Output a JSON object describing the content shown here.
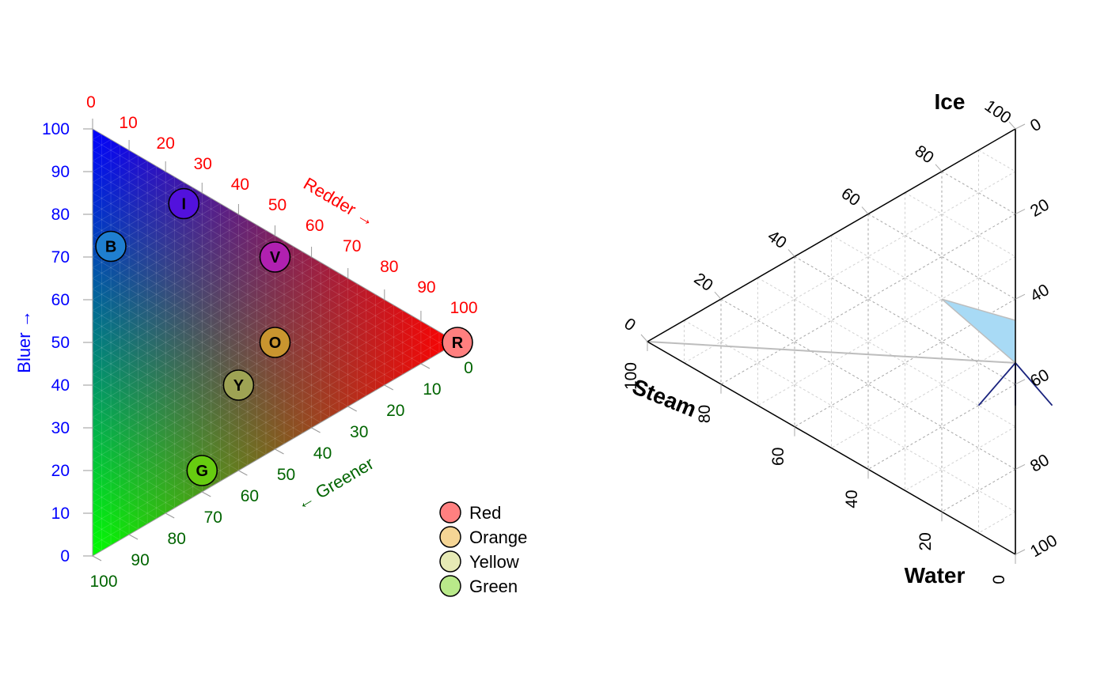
{
  "chart_data": [
    {
      "type": "ternary-scatter",
      "title": "",
      "axes": {
        "red": {
          "label": "Redder →",
          "ticks": [
            "0",
            "10",
            "20",
            "30",
            "40",
            "50",
            "60",
            "70",
            "80",
            "90",
            "100"
          ],
          "color": "#ff0000"
        },
        "green": {
          "label": "← Greener",
          "ticks": [
            "0",
            "10",
            "20",
            "30",
            "40",
            "50",
            "60",
            "70",
            "80",
            "90",
            "100"
          ],
          "color": "#006400"
        },
        "blue": {
          "label": "Bluer →",
          "ticks": [
            "0",
            "10",
            "20",
            "30",
            "40",
            "50",
            "60",
            "70",
            "80",
            "90",
            "100"
          ],
          "color": "#0000ff"
        }
      },
      "background": "rgb color gradient",
      "points": [
        {
          "label": "R",
          "red": 100,
          "green": 0,
          "blue": 0,
          "fill": "#ff7f7f"
        },
        {
          "label": "O",
          "red": 50,
          "green": 25,
          "blue": 25,
          "fill": "#c9952f"
        },
        {
          "label": "Y",
          "red": 40,
          "green": 40,
          "blue": 20,
          "fill": "#9ea354"
        },
        {
          "label": "G",
          "red": 30,
          "green": 65,
          "blue": 5,
          "fill": "#66cc10"
        },
        {
          "label": "B",
          "red": 5,
          "green": 25,
          "blue": 70,
          "fill": "#1f7fd0"
        },
        {
          "label": "I",
          "red": 25,
          "green": 5,
          "blue": 70,
          "fill": "#5211dd"
        },
        {
          "label": "V",
          "red": 50,
          "green": 5,
          "blue": 45,
          "fill": "#b020b0"
        }
      ],
      "legend": {
        "position": "bottom-right",
        "items": [
          {
            "label": "Red",
            "color": "#ff8080"
          },
          {
            "label": "Orange",
            "color": "#f5d595"
          },
          {
            "label": "Yellow",
            "color": "#e6eab5"
          },
          {
            "label": "Green",
            "color": "#b9e98a"
          }
        ]
      }
    },
    {
      "type": "ternary-phase",
      "title": "",
      "axes": {
        "ice": {
          "label": "Ice",
          "ticks": [
            "0",
            "20",
            "40",
            "60",
            "80",
            "100"
          ]
        },
        "steam": {
          "label": "Steam",
          "ticks": [
            "0",
            "20",
            "40",
            "60",
            "80",
            "100"
          ]
        },
        "water": {
          "label": "Water",
          "ticks": [
            "0",
            "20",
            "40",
            "60",
            "80",
            "100"
          ]
        }
      },
      "grid": true,
      "phase_lines": [
        {
          "from": {
            "ice": 100,
            "steam": 0,
            "water": 0
          },
          "to": {
            "ice": 55,
            "steam": 0,
            "water": 45
          }
        },
        {
          "from": {
            "ice": 0,
            "steam": 100,
            "water": 0
          },
          "to": {
            "ice": 45,
            "steam": 0,
            "water": 55
          }
        },
        {
          "from": {
            "ice": 0,
            "steam": 0,
            "water": 100
          },
          "to": {
            "ice": 45,
            "steam": 0,
            "water": 55
          }
        }
      ],
      "region": {
        "fill": "#a8daf5",
        "vertices": [
          {
            "ice": 55,
            "steam": 0,
            "water": 45
          },
          {
            "ice": 45,
            "steam": 0,
            "water": 55
          },
          {
            "ice": 50,
            "steam": 20,
            "water": 30
          }
        ]
      },
      "arrows": [
        {
          "from": {
            "ice": 45,
            "steam": 0,
            "water": 55
          },
          "to": {
            "ice": 35,
            "steam": 0,
            "water": 65
          },
          "color": "#1a237e"
        },
        {
          "from": {
            "ice": 45,
            "steam": 0,
            "water": 55
          },
          "to": {
            "ice": 30,
            "steam": 10,
            "water": 60
          },
          "color": "#1a237e"
        },
        {
          "from": {
            "ice": 45,
            "steam": 0,
            "water": 55
          },
          "to": {
            "ice": 40,
            "steam": -10,
            "water": 70
          },
          "color": "#1a237e"
        }
      ]
    }
  ]
}
